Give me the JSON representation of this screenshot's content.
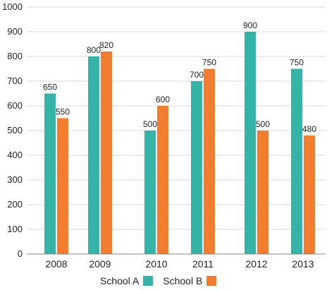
{
  "chart_data": {
    "type": "bar",
    "title": "",
    "xlabel": "",
    "ylabel": "",
    "categories": [
      "2008",
      "2009",
      "2010",
      "2011",
      "2012",
      "2013"
    ],
    "series": [
      {
        "name": "School A",
        "values": [
          650,
          800,
          500,
          700,
          900,
          750
        ],
        "color": "#35b3a6"
      },
      {
        "name": "School B",
        "values": [
          550,
          820,
          600,
          750,
          500,
          480
        ],
        "color": "#f07d30"
      }
    ],
    "data_labels": {
      "School A": [
        "650",
        "800",
        "500",
        "700",
        "900",
        "750"
      ],
      "School B": [
        "550",
        "820",
        "600",
        "750",
        "500",
        "480"
      ]
    },
    "ylim": [
      0,
      1000
    ],
    "yticks": [
      0,
      100,
      200,
      300,
      400,
      500,
      600,
      700,
      800,
      900,
      1000
    ],
    "grid": true,
    "legend_position": "bottom"
  },
  "legend": {
    "school_a": "School A",
    "school_b": "School B"
  }
}
